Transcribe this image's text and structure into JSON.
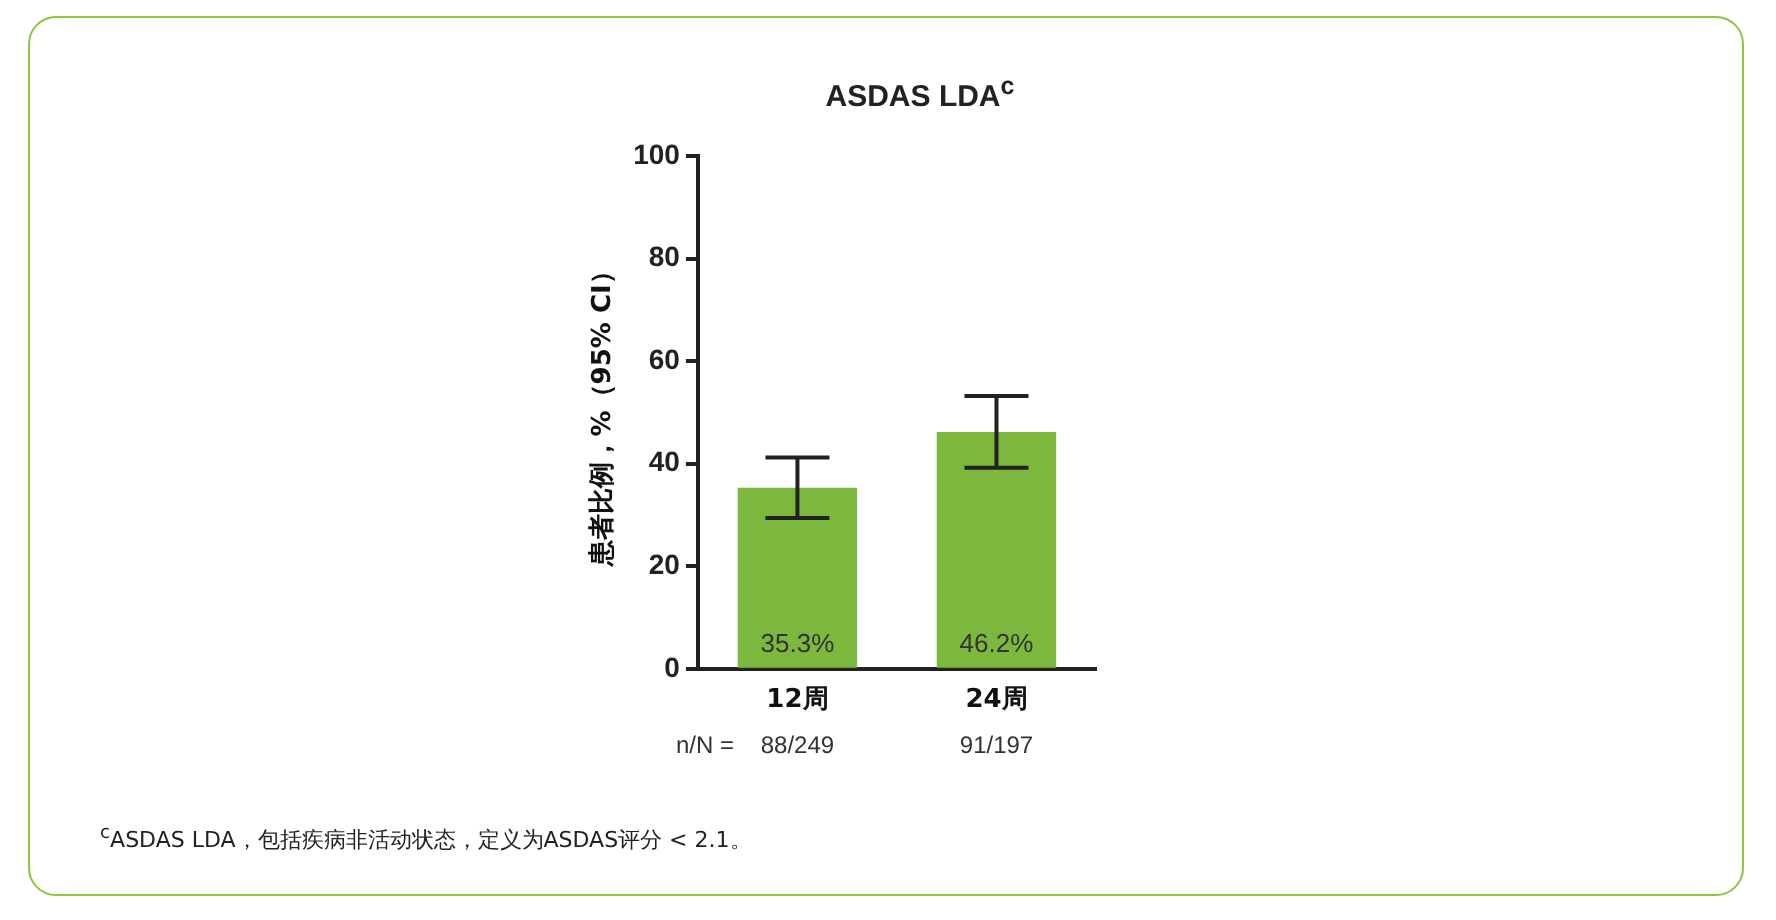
{
  "chart_data": {
    "type": "bar",
    "title": "ASDAS LDA$^{c}$",
    "ylabel": "患者比例，%（95% CI）",
    "categories": [
      "12周",
      "24周"
    ],
    "values": [
      35.3,
      46.2
    ],
    "color": "#7cb83e",
    "errors": [
      [
        29.4,
        41.2
      ],
      [
        39.2,
        53.2
      ]
    ],
    "value_labels": [
      "35.3%",
      "46.2%"
    ],
    "ylim": [
      0,
      100
    ],
    "yticks": [
      0,
      20,
      40,
      60,
      80,
      100
    ],
    "grid": false,
    "legend": false,
    "annotations": [
      "n/N =",
      "88/249",
      "91/197",
      "$^{c}$ASDAS LDA，包括疾病非活动状态，定义为ASDAS评分 < 2.1。"
    ]
  }
}
